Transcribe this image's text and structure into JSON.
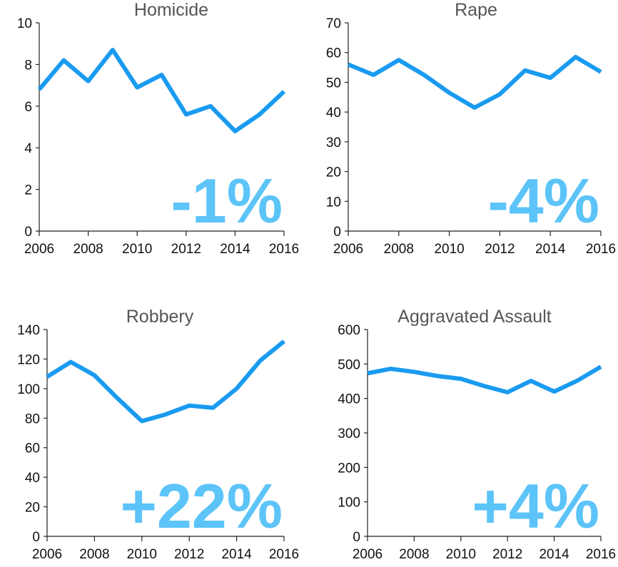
{
  "chart_data": [
    {
      "type": "line",
      "title": "Homicide",
      "annotation": "-1%",
      "x": [
        2006,
        2007,
        2008,
        2009,
        2010,
        2011,
        2012,
        2013,
        2014,
        2015,
        2016
      ],
      "series": [
        {
          "name": "Homicide",
          "color": "#1a9bf0",
          "values": [
            6.8,
            8.2,
            7.2,
            8.7,
            6.9,
            7.5,
            5.6,
            6.0,
            4.8,
            5.6,
            6.7
          ]
        }
      ],
      "xlim": [
        2006,
        2016
      ],
      "xticks": [
        2006,
        2008,
        2010,
        2012,
        2014,
        2016
      ],
      "ylim": [
        0,
        10
      ],
      "yticks": [
        0,
        2,
        4,
        6,
        8,
        10
      ]
    },
    {
      "type": "line",
      "title": "Rape",
      "annotation": "-4%",
      "x": [
        2006,
        2007,
        2008,
        2009,
        2010,
        2011,
        2012,
        2013,
        2014,
        2015,
        2016
      ],
      "series": [
        {
          "name": "Rape",
          "color": "#1a9bf0",
          "values": [
            56,
            52.5,
            57.5,
            52.5,
            46.5,
            41.5,
            46,
            54,
            51.5,
            58.5,
            53.5
          ]
        }
      ],
      "xlim": [
        2006,
        2016
      ],
      "xticks": [
        2006,
        2008,
        2010,
        2012,
        2014,
        2016
      ],
      "ylim": [
        0,
        70
      ],
      "yticks": [
        0,
        10,
        20,
        30,
        40,
        50,
        60,
        70
      ]
    },
    {
      "type": "line",
      "title": "Robbery",
      "annotation": "+22%",
      "x": [
        2006,
        2007,
        2008,
        2009,
        2010,
        2011,
        2012,
        2013,
        2014,
        2015,
        2016
      ],
      "series": [
        {
          "name": "Robbery",
          "color": "#1a9bf0",
          "values": [
            108,
            118,
            109,
            93,
            78,
            82.5,
            88.5,
            87,
            100,
            119,
            132
          ]
        }
      ],
      "xlim": [
        2006,
        2016
      ],
      "xticks": [
        2006,
        2008,
        2010,
        2012,
        2014,
        2016
      ],
      "ylim": [
        0,
        140
      ],
      "yticks": [
        0,
        20,
        40,
        60,
        80,
        100,
        120,
        140
      ]
    },
    {
      "type": "line",
      "title": "Aggravated Assault",
      "annotation": "+4%",
      "x": [
        2006,
        2007,
        2008,
        2009,
        2010,
        2011,
        2012,
        2013,
        2014,
        2015,
        2016
      ],
      "series": [
        {
          "name": "Aggravated Assault",
          "color": "#1a9bf0",
          "values": [
            473,
            486,
            477,
            465,
            457,
            436,
            418,
            451,
            420,
            452,
            492
          ]
        }
      ],
      "xlim": [
        2006,
        2016
      ],
      "xticks": [
        2006,
        2008,
        2010,
        2012,
        2014,
        2016
      ],
      "ylim": [
        0,
        600
      ],
      "yticks": [
        0,
        100,
        200,
        300,
        400,
        500,
        600
      ]
    }
  ]
}
